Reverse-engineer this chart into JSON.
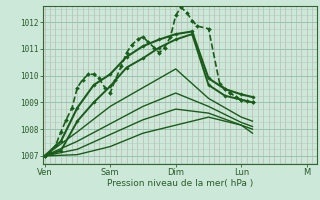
{
  "bg_color": "#cce8d8",
  "grid_v_color": "#c8a8a8",
  "grid_h_color": "#aacfbf",
  "line_color": "#1a5c1a",
  "xlabel": "Pression niveau de la mer( hPa )",
  "ylim": [
    1006.7,
    1012.6
  ],
  "xlim": [
    -0.02,
    4.15
  ],
  "xtick_labels": [
    "Ven",
    "Sam",
    "Dim",
    "Lun",
    "M"
  ],
  "xtick_pos": [
    0.0,
    1.0,
    2.0,
    3.0,
    4.0
  ],
  "ytick_labels": [
    "1007",
    "1008",
    "1009",
    "1010",
    "1011",
    "1012"
  ],
  "ytick_pos": [
    1007,
    1008,
    1009,
    1010,
    1011,
    1012
  ],
  "series": [
    {
      "x": [
        0.0,
        0.08,
        0.17,
        0.25,
        0.33,
        0.42,
        0.5,
        0.58,
        0.67,
        0.75,
        0.83,
        0.92,
        1.0,
        1.08,
        1.17,
        1.25,
        1.33,
        1.42,
        1.5,
        1.58,
        1.67,
        1.75,
        1.83,
        1.92,
        2.0,
        2.08,
        2.17,
        2.25,
        2.33,
        2.5,
        2.67,
        2.75,
        2.83,
        2.92,
        3.0,
        3.08,
        3.17
      ],
      "y": [
        1007.0,
        1007.15,
        1007.4,
        1007.9,
        1008.35,
        1008.8,
        1009.55,
        1009.85,
        1010.05,
        1010.05,
        1009.9,
        1009.55,
        1009.35,
        1009.85,
        1010.35,
        1010.85,
        1011.15,
        1011.35,
        1011.45,
        1011.25,
        1011.05,
        1010.85,
        1011.05,
        1011.45,
        1012.25,
        1012.55,
        1012.35,
        1012.05,
        1011.85,
        1011.75,
        1009.7,
        1009.5,
        1009.35,
        1009.2,
        1009.1,
        1009.05,
        1009.0
      ],
      "lw": 1.2,
      "marker": true,
      "ms": 2.0,
      "dashed": true
    },
    {
      "x": [
        0.0,
        0.25,
        0.5,
        0.75,
        1.0,
        1.25,
        1.5,
        1.75,
        2.0,
        2.25,
        2.5,
        2.75,
        3.0,
        3.17
      ],
      "y": [
        1007.0,
        1007.55,
        1008.8,
        1009.65,
        1010.05,
        1010.7,
        1011.1,
        1011.35,
        1011.55,
        1011.65,
        1009.9,
        1009.5,
        1009.3,
        1009.2
      ],
      "lw": 1.5,
      "marker": true,
      "ms": 1.8,
      "dashed": false
    },
    {
      "x": [
        0.0,
        0.25,
        0.5,
        0.75,
        1.0,
        1.25,
        1.5,
        1.75,
        2.0,
        2.25,
        2.5,
        2.75,
        3.0,
        3.17
      ],
      "y": [
        1007.0,
        1007.2,
        1008.3,
        1009.0,
        1009.6,
        1010.3,
        1010.65,
        1011.05,
        1011.35,
        1011.55,
        1009.65,
        1009.25,
        1009.1,
        1009.0
      ],
      "lw": 1.4,
      "marker": true,
      "ms": 1.8,
      "dashed": false
    },
    {
      "x": [
        0.0,
        0.5,
        1.0,
        1.5,
        2.0,
        2.5,
        3.0,
        3.17
      ],
      "y": [
        1007.0,
        1007.9,
        1008.85,
        1009.55,
        1010.25,
        1009.15,
        1008.45,
        1008.3
      ],
      "lw": 1.0,
      "marker": false,
      "ms": 0,
      "dashed": false
    },
    {
      "x": [
        0.0,
        0.5,
        1.0,
        1.5,
        2.0,
        2.5,
        3.0,
        3.17
      ],
      "y": [
        1007.0,
        1007.55,
        1008.2,
        1008.85,
        1009.35,
        1008.85,
        1008.25,
        1008.1
      ],
      "lw": 1.0,
      "marker": false,
      "ms": 0,
      "dashed": false
    },
    {
      "x": [
        0.0,
        0.5,
        1.0,
        1.5,
        2.0,
        2.5,
        3.0,
        3.17
      ],
      "y": [
        1007.0,
        1007.25,
        1007.8,
        1008.35,
        1008.75,
        1008.6,
        1008.15,
        1008.0
      ],
      "lw": 1.0,
      "marker": false,
      "ms": 0,
      "dashed": false
    },
    {
      "x": [
        0.0,
        0.5,
        1.0,
        1.5,
        2.0,
        2.5,
        3.0,
        3.17
      ],
      "y": [
        1007.0,
        1007.05,
        1007.35,
        1007.85,
        1008.15,
        1008.45,
        1008.15,
        1007.85
      ],
      "lw": 1.0,
      "marker": false,
      "ms": 0,
      "dashed": false
    }
  ]
}
